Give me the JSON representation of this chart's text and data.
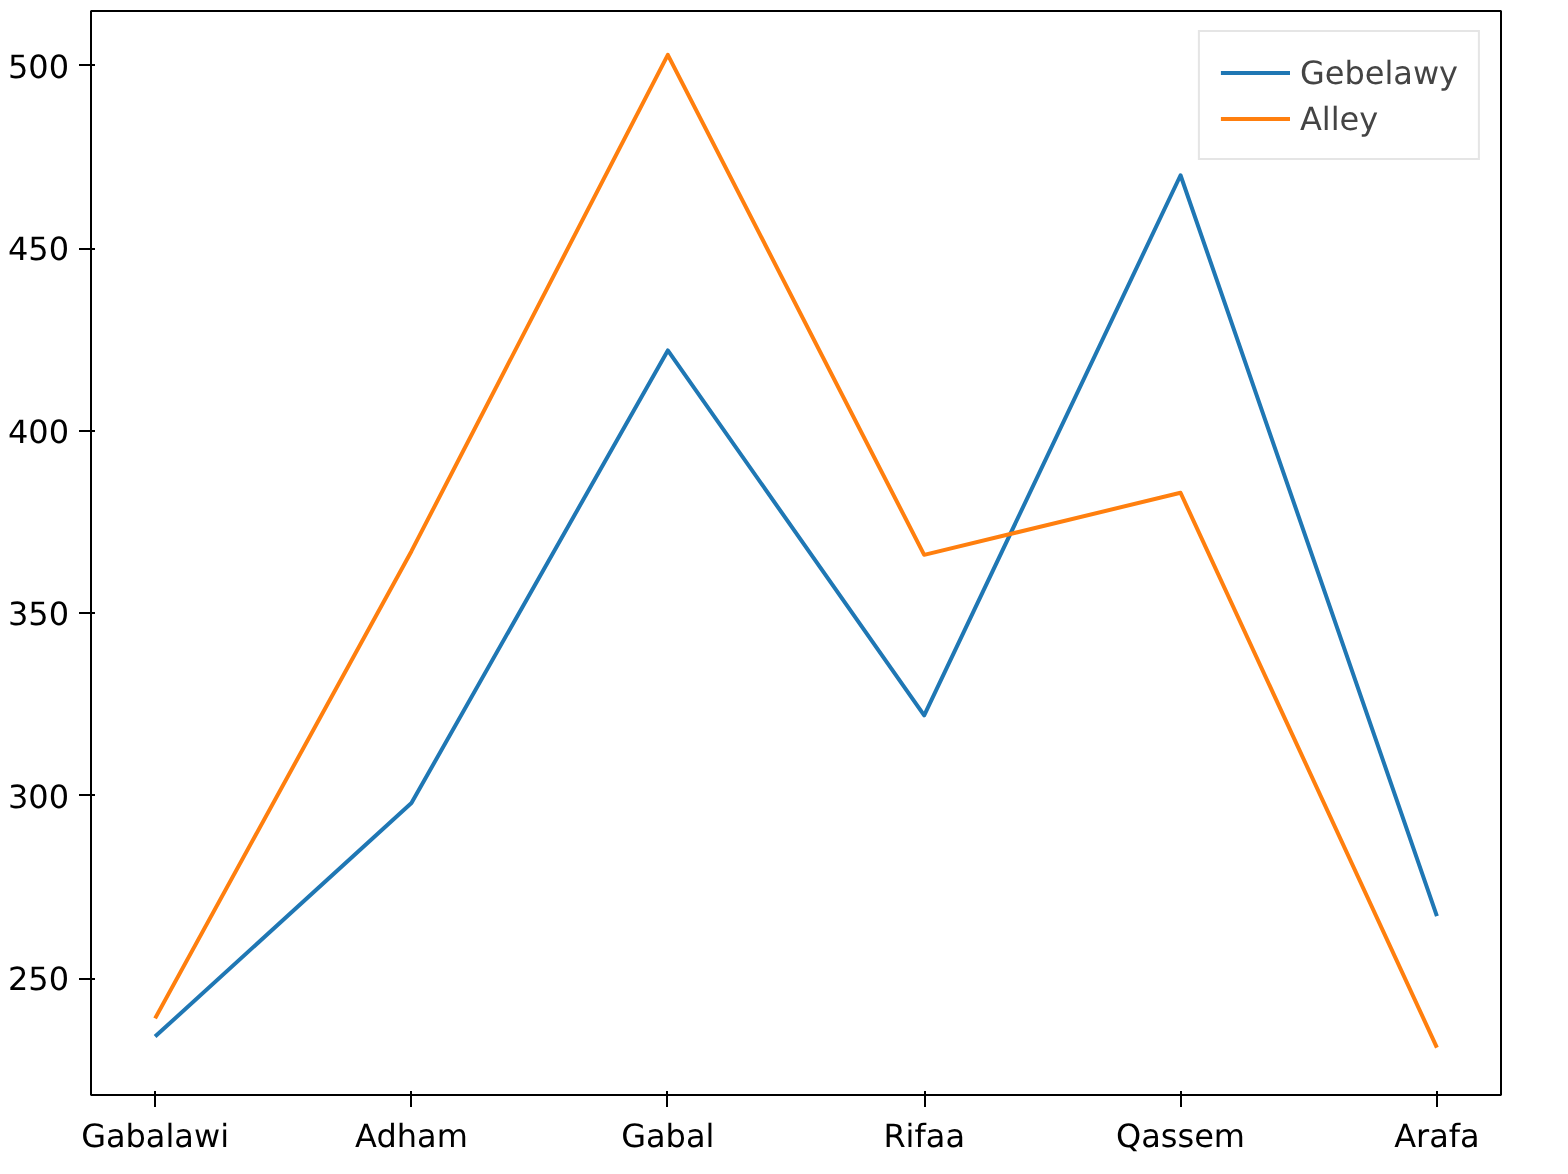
{
  "chart_data": {
    "type": "line",
    "categories": [
      "Gabalawi",
      "Adham",
      "Gabal",
      "Rifaa",
      "Qassem",
      "Arafa"
    ],
    "series": [
      {
        "name": "Gebelawy",
        "color": "#1f77b4",
        "values": [
          234,
          298,
          422,
          322,
          470,
          267
        ]
      },
      {
        "name": "Alley",
        "color": "#ff7f0e",
        "values": [
          239,
          367,
          503,
          366,
          383,
          231
        ]
      }
    ],
    "ylim": [
      218,
      515
    ],
    "yticks": [
      250,
      300,
      350,
      400,
      450,
      500
    ],
    "grid": false,
    "legend": "top right",
    "marker": "none",
    "line_style": "solid"
  }
}
